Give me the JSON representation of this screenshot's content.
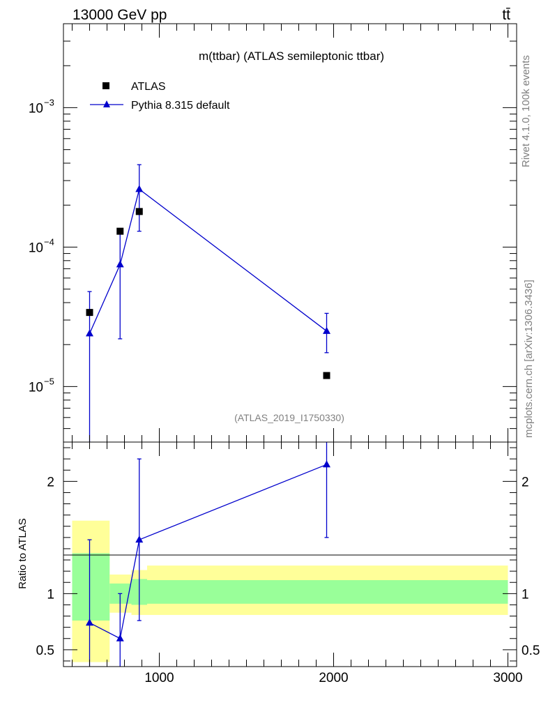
{
  "header": {
    "energy_label": "13000 GeV pp",
    "process_label": "tt̄"
  },
  "side": {
    "rivet_label": "Rivet 4.1.0,  100k events",
    "source_label": "mcplots.cern.ch [arXiv:1306.3436]"
  },
  "chart_data": {
    "type": "scatter",
    "title": "m(ttbar) (ATLAS semileptonic ttbar)",
    "analysis_id": "(ATLAS_2019_I1750330)",
    "xlabel": "",
    "xlim": [
      450,
      3050
    ],
    "x_ticks": [
      1000,
      2000,
      3000
    ],
    "x_tick_labels": [
      "1000",
      "2000",
      "3000"
    ],
    "main": {
      "yscale": "log",
      "ylim": [
        4e-06,
        0.004
      ],
      "y_major_ticks": [
        1e-05,
        0.0001,
        0.001
      ],
      "y_tick_labels": [
        {
          "base": "10",
          "exp": "−5"
        },
        {
          "base": "10",
          "exp": "−4"
        },
        {
          "base": "10",
          "exp": "−3"
        }
      ],
      "legend": [
        {
          "label": "ATLAS",
          "marker": "square",
          "color": "#000000"
        },
        {
          "label": "Pythia 8.315 default",
          "marker": "triangle",
          "color": "#0000cc"
        }
      ],
      "data": {
        "name": "ATLAS",
        "x": [
          600,
          775,
          885,
          1960
        ],
        "y": [
          3.4e-05,
          0.00013,
          0.00018,
          1.2e-05
        ]
      },
      "mc": {
        "name": "Pythia 8.315 default",
        "x": [
          600,
          775,
          885,
          1960
        ],
        "y": [
          2.4e-05,
          7.5e-05,
          0.00026,
          2.5e-05
        ],
        "yerr_low": [
          2.4e-05,
          5.3e-05,
          0.00013,
          7.5e-06
        ],
        "yerr_high": [
          2.4e-05,
          5.3e-05,
          0.00013,
          8.5e-06
        ]
      }
    },
    "ratio": {
      "ylabel": "Ratio to ATLAS",
      "ylim": [
        0.35,
        2.35
      ],
      "y_ticks": [
        0.5,
        1,
        2
      ],
      "y_tick_labels": [
        "0.5",
        "1",
        "2"
      ],
      "bands": [
        {
          "x0": 500,
          "x1": 715,
          "inner": [
            0.76,
            1.36
          ],
          "outer": [
            0.39,
            1.65
          ]
        },
        {
          "x0": 715,
          "x1": 840,
          "inner": [
            0.91,
            1.09
          ],
          "outer": [
            0.83,
            1.17
          ]
        },
        {
          "x0": 840,
          "x1": 930,
          "inner": [
            0.9,
            1.13
          ],
          "outer": [
            0.81,
            1.21
          ]
        },
        {
          "x0": 930,
          "x1": 3000,
          "inner": [
            0.91,
            1.12
          ],
          "outer": [
            0.81,
            1.25
          ]
        }
      ],
      "mc": {
        "x": [
          600,
          775,
          885,
          1960
        ],
        "y": [
          0.74,
          0.6,
          1.48,
          2.15
        ],
        "yerr_low": [
          0.74,
          0.6,
          0.72,
          0.65
        ],
        "yerr_high": [
          0.74,
          0.4,
          0.72,
          0.65
        ]
      }
    },
    "colors": {
      "data": "#000000",
      "mc": "#0000cc",
      "band_inner": "#99ff99",
      "band_outer": "#ffff99"
    }
  }
}
